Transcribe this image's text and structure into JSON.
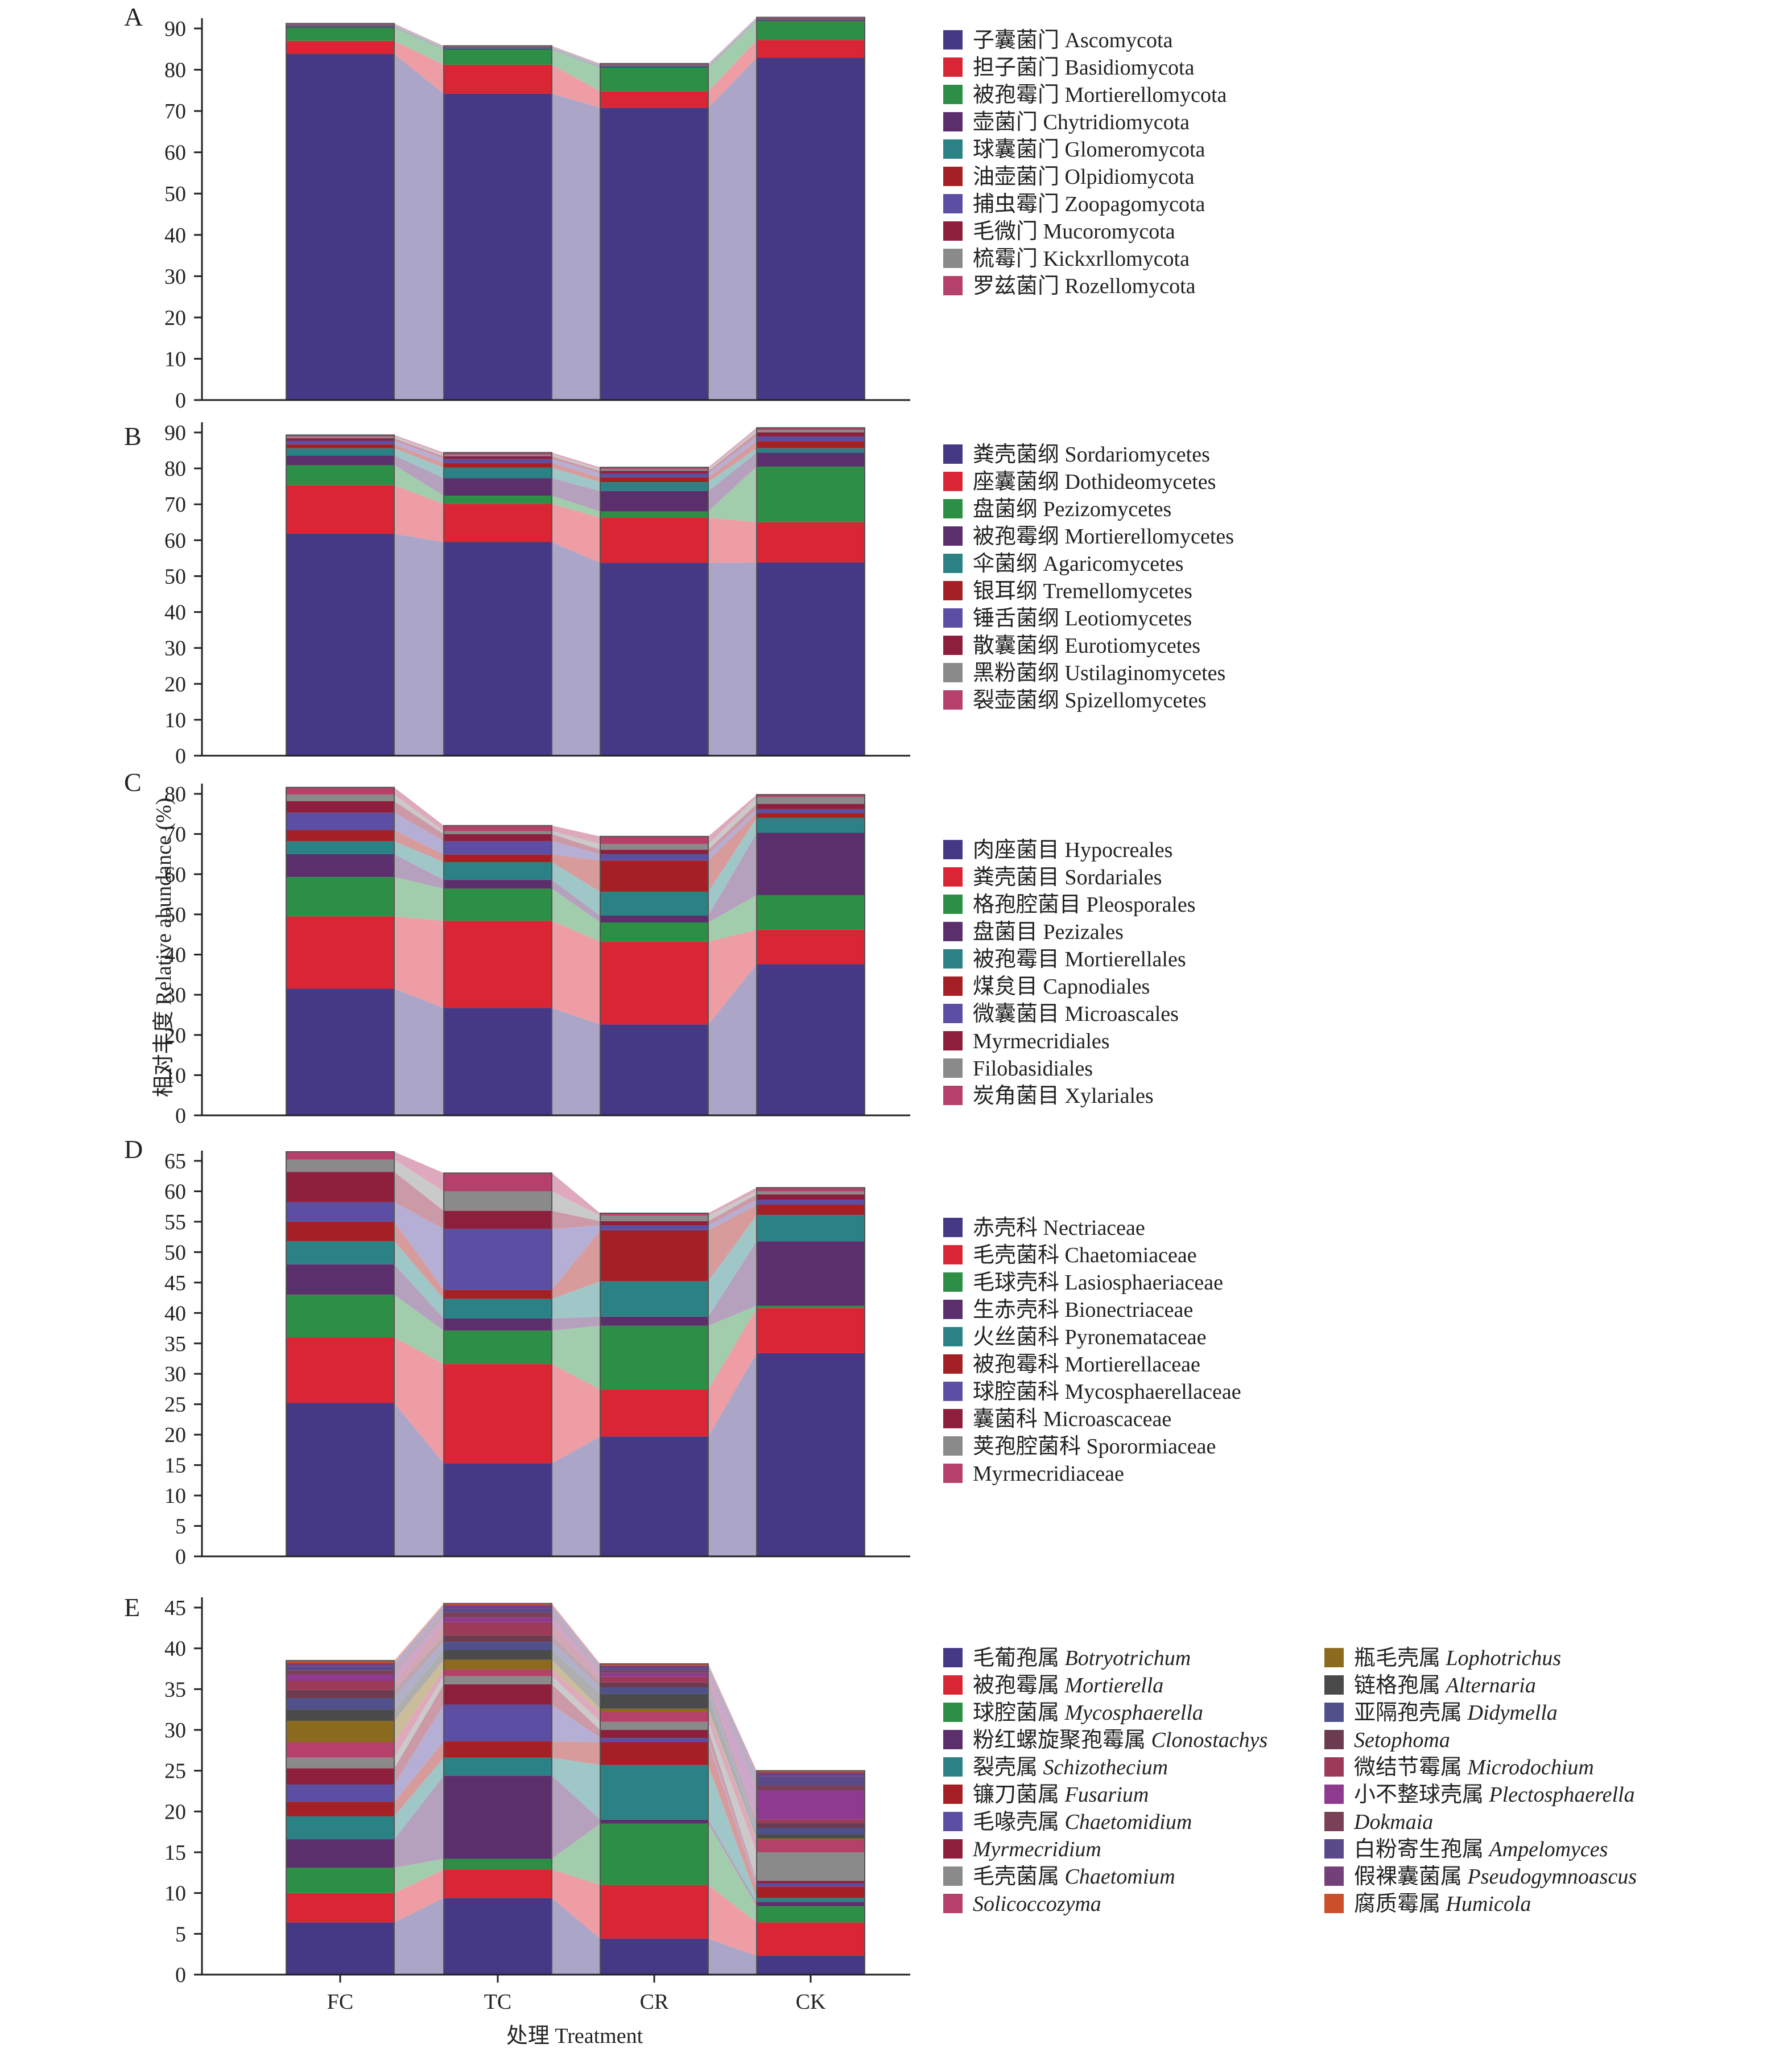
{
  "chart_data": {
    "type": "bar",
    "categories": [
      "FC",
      "TC",
      "CR",
      "CK"
    ],
    "xlabel": "处理 Treatment",
    "ylabel": "相对丰度 Relative abundance (%)",
    "panels": [
      {
        "letter": "A",
        "ylim": [
          0,
          90
        ],
        "yticks": [
          0,
          10,
          20,
          30,
          40,
          50,
          60,
          70,
          80,
          90
        ],
        "series": [
          {
            "name": "子囊菌门 Ascomycota",
            "color": "#453885",
            "values": [
              83.8,
              74.2,
              70.8,
              82.9
            ]
          },
          {
            "name": "担子菌门 Basidiomycota",
            "color": "#d92534",
            "values": [
              3.2,
              7.0,
              4.0,
              4.3
            ]
          },
          {
            "name": "被孢霉门 Mortierellomycota",
            "color": "#2d8f46",
            "values": [
              3.2,
              3.7,
              5.7,
              4.6
            ]
          },
          {
            "name": "壶菌门 Chytridiomycota",
            "color": "#5b2e6c",
            "values": [
              0.3,
              0.2,
              0.3,
              0.2
            ]
          },
          {
            "name": "球囊菌门 Glomeromycota",
            "color": "#2a8285",
            "values": [
              0.2,
              0.2,
              0.2,
              0.2
            ]
          },
          {
            "name": "油壶菌门 Olpidiomycota",
            "color": "#a52024",
            "values": [
              0.1,
              0.1,
              0.1,
              0.1
            ]
          },
          {
            "name": "捕虫霉门 Zoopagomycota",
            "color": "#5c4ea2",
            "values": [
              0.1,
              0.1,
              0.1,
              0.1
            ]
          },
          {
            "name": "毛微门 Mucoromycota",
            "color": "#8d1f3c",
            "values": [
              0.1,
              0.1,
              0.1,
              0.1
            ]
          },
          {
            "name": "梳霉门 Kickxrllomycota",
            "color": "#8a8a8a",
            "values": [
              0.1,
              0.1,
              0.1,
              0.1
            ]
          },
          {
            "name": "罗兹菌门 Rozellomycota",
            "color": "#b5406a",
            "values": [
              0.1,
              0.1,
              0.1,
              0.1
            ]
          }
        ]
      },
      {
        "letter": "B",
        "ylim": [
          0,
          90
        ],
        "yticks": [
          0,
          10,
          20,
          30,
          40,
          50,
          60,
          70,
          80,
          90
        ],
        "series": [
          {
            "name": "粪壳菌纲 Sordariomycetes",
            "color": "#453885",
            "values": [
              61.8,
              59.5,
              53.7,
              53.8
            ]
          },
          {
            "name": "座囊菌纲 Dothideomycetes",
            "color": "#d92534",
            "values": [
              13.5,
              10.6,
              12.6,
              11.2
            ]
          },
          {
            "name": "盘菌纲 Pezizomycetes",
            "color": "#2d8f46",
            "values": [
              5.6,
              2.3,
              1.7,
              15.5
            ]
          },
          {
            "name": "被孢霉纲 Mortierellomycetes",
            "color": "#5b2e6c",
            "values": [
              2.7,
              4.9,
              5.7,
              3.9
            ]
          },
          {
            "name": "伞菌纲 Agaricomycetes",
            "color": "#2a8285",
            "values": [
              2.0,
              2.9,
              2.5,
              1.2
            ]
          },
          {
            "name": "银耳纲 Tremellomycetes",
            "color": "#a52024",
            "values": [
              1.1,
              1.3,
              1.3,
              2.0
            ]
          },
          {
            "name": "锤舌菌纲 Leotiomycetes",
            "color": "#5c4ea2",
            "values": [
              1.0,
              1.1,
              1.1,
              1.3
            ]
          },
          {
            "name": "散囊菌纲 Eurotiomycetes",
            "color": "#8d1f3c",
            "values": [
              0.7,
              0.8,
              0.7,
              1.1
            ]
          },
          {
            "name": "黑粉菌纲 Ustilaginomycetes",
            "color": "#8a8a8a",
            "values": [
              0.5,
              0.5,
              0.5,
              0.7
            ]
          },
          {
            "name": "裂壶菌纲 Spizellomycetes",
            "color": "#b5406a",
            "values": [
              0.4,
              0.5,
              0.5,
              0.6
            ]
          }
        ]
      },
      {
        "letter": "C",
        "ylim": [
          0,
          80
        ],
        "yticks": [
          0,
          10,
          20,
          30,
          40,
          50,
          60,
          70,
          80
        ],
        "series": [
          {
            "name": "肉座菌目 Hypocreales",
            "color": "#453885",
            "values": [
              31.5,
              26.7,
              22.6,
              37.6
            ]
          },
          {
            "name": "粪壳菌目 Sordariales",
            "color": "#d92534",
            "values": [
              18.0,
              21.7,
              20.6,
              8.6
            ]
          },
          {
            "name": "格孢腔菌目 Pleosporales",
            "color": "#2d8f46",
            "values": [
              9.8,
              8.0,
              4.8,
              8.6
            ]
          },
          {
            "name": "盘菌目 Pezizales",
            "color": "#5b2e6c",
            "values": [
              5.7,
              2.2,
              1.7,
              15.5
            ]
          },
          {
            "name": "被孢霉目 Mortierellales",
            "color": "#2a8285",
            "values": [
              3.2,
              4.4,
              5.9,
              3.7
            ]
          },
          {
            "name": "煤炱目 Capnodiales",
            "color": "#a52024",
            "values": [
              2.8,
              1.9,
              7.8,
              1.2
            ]
          },
          {
            "name": "微囊菌目 Microascales",
            "color": "#5c4ea2",
            "values": [
              4.3,
              3.3,
              1.6,
              1.0
            ]
          },
          {
            "name": "Myrmecridiales",
            "color": "#8d1f3c",
            "values": [
              2.9,
              1.8,
              1.1,
              1.3
            ]
          },
          {
            "name": "Filobasidiales",
            "color": "#8a8a8a",
            "values": [
              1.6,
              0.7,
              1.4,
              1.7
            ]
          },
          {
            "name": "炭角菌目 Xylariales",
            "color": "#b5406a",
            "values": [
              1.8,
              1.4,
              1.9,
              0.6
            ]
          }
        ]
      },
      {
        "letter": "D",
        "ylim": [
          0,
          65
        ],
        "yticks": [
          0,
          5,
          10,
          15,
          20,
          25,
          30,
          35,
          40,
          45,
          50,
          55,
          60,
          65
        ],
        "series": [
          {
            "name": "赤壳科 Nectriaceae",
            "color": "#453885",
            "values": [
              25.2,
              15.3,
              19.7,
              33.4
            ]
          },
          {
            "name": "毛壳菌科 Chaetomiaceae",
            "color": "#d92534",
            "values": [
              10.8,
              16.3,
              7.7,
              7.4
            ]
          },
          {
            "name": "毛球壳科 Lasiosphaeriaceae",
            "color": "#2d8f46",
            "values": [
              7.0,
              5.5,
              10.5,
              0.4
            ]
          },
          {
            "name": "生赤壳科 Bionectriaceae",
            "color": "#5b2e6c",
            "values": [
              5.0,
              2.0,
              1.5,
              10.6
            ]
          },
          {
            "name": "火丝菌科 Pyronemataceae",
            "color": "#2a8285",
            "values": [
              3.8,
              3.2,
              5.8,
              4.3
            ]
          },
          {
            "name": "被孢霉科 Mortierellaceae",
            "color": "#a52024",
            "values": [
              3.2,
              1.5,
              8.4,
              1.7
            ]
          },
          {
            "name": "球腔菌科 Mycosphaerellaceae",
            "color": "#5c4ea2",
            "values": [
              3.2,
              10.0,
              0.8,
              0.8
            ]
          },
          {
            "name": "囊菌科 Microascaceae",
            "color": "#8d1f3c",
            "values": [
              5.0,
              3.0,
              0.7,
              0.9
            ]
          },
          {
            "name": "荚孢腔菌科 Sporormiaceae",
            "color": "#8a8a8a",
            "values": [
              2.0,
              3.2,
              0.9,
              0.5
            ]
          },
          {
            "name": "Myrmecridiaceae",
            "color": "#b5406a",
            "values": [
              1.3,
              3.0,
              0.4,
              0.6
            ]
          }
        ]
      },
      {
        "letter": "E",
        "ylim": [
          0,
          45
        ],
        "yticks": [
          0,
          5,
          10,
          15,
          20,
          25,
          30,
          35,
          40,
          45
        ],
        "legend_columns": 2,
        "series": [
          {
            "name_cn": "毛葡孢属",
            "name_latin": "Botryotrichum",
            "color": "#453885",
            "values": [
              6.4,
              9.4,
              4.4,
              2.3
            ]
          },
          {
            "name_cn": "被孢霉属",
            "name_latin": "Mortierella",
            "color": "#d92534",
            "values": [
              3.6,
              3.5,
              6.6,
              4.1
            ]
          },
          {
            "name_cn": "球腔菌属",
            "name_latin": "Mycosphaerella",
            "color": "#2d8f46",
            "values": [
              3.1,
              1.3,
              7.5,
              2.0
            ]
          },
          {
            "name_cn": "粉红螺旋聚孢霉属",
            "name_latin": "Clonostachys",
            "color": "#5b2e6c",
            "values": [
              3.5,
              10.2,
              0.5,
              0.5
            ]
          },
          {
            "name_cn": "裂壳属",
            "name_latin": "Schizothecium",
            "color": "#2a8285",
            "values": [
              2.8,
              2.2,
              6.7,
              0.5
            ]
          },
          {
            "name_cn": "镰刀菌属",
            "name_latin": "Fusarium",
            "color": "#a52024",
            "values": [
              1.8,
              2.0,
              2.8,
              1.4
            ]
          },
          {
            "name_cn": "毛喙壳属",
            "name_latin": "Chaetomidium",
            "color": "#5c4ea2",
            "values": [
              2.1,
              4.5,
              0.5,
              0.4
            ]
          },
          {
            "name_cn": "",
            "name_latin": "Myrmecridium",
            "color": "#8d1f3c",
            "values": [
              2.0,
              2.5,
              1.0,
              0.3
            ]
          },
          {
            "name_cn": "毛壳菌属",
            "name_latin": "Chaetomium",
            "color": "#8a8a8a",
            "values": [
              1.3,
              1.0,
              1.0,
              3.5
            ]
          },
          {
            "name_cn": "",
            "name_latin": "Solicoccozyma",
            "color": "#b5406a",
            "values": [
              1.9,
              0.8,
              1.2,
              1.5
            ]
          },
          {
            "name_cn": "瓶毛壳属",
            "name_latin": "Lophotrichus",
            "color": "#8c6a1e",
            "values": [
              2.6,
              1.2,
              0.4,
              0.2
            ]
          },
          {
            "name_cn": "链格孢属",
            "name_latin": "Alternaria",
            "color": "#4a4a4a",
            "values": [
              1.4,
              1.2,
              1.8,
              0.5
            ]
          },
          {
            "name_cn": "亚隔孢壳属",
            "name_latin": "Didymella",
            "color": "#50508a",
            "values": [
              1.4,
              1.0,
              0.8,
              0.8
            ]
          },
          {
            "name_cn": "",
            "name_latin": "Setophoma",
            "color": "#6b3b4f",
            "values": [
              1.0,
              0.8,
              0.6,
              0.6
            ]
          },
          {
            "name_cn": "微结节霉属",
            "name_latin": "Microdochium",
            "color": "#9c3a58",
            "values": [
              1.1,
              1.6,
              0.7,
              0.4
            ]
          },
          {
            "name_cn": "小不整球壳属",
            "name_latin": "Plectosphaerella",
            "color": "#8e3a8e",
            "values": [
              0.8,
              0.6,
              0.5,
              3.6
            ]
          },
          {
            "name_cn": "",
            "name_latin": "Dokmaia",
            "color": "#7a4055",
            "values": [
              0.5,
              0.6,
              0.3,
              0.6
            ]
          },
          {
            "name_cn": "白粉寄生孢属",
            "name_latin": "Ampelomyces",
            "color": "#5a4a8a",
            "values": [
              0.5,
              0.5,
              0.3,
              1.1
            ]
          },
          {
            "name_cn": "假裸囊菌属",
            "name_latin": "Pseudogymnoascus",
            "color": "#74407a",
            "values": [
              0.4,
              0.4,
              0.3,
              0.5
            ]
          },
          {
            "name_cn": "腐质霉属",
            "name_latin": "Humicola",
            "color": "#c9502a",
            "values": [
              0.3,
              0.2,
              0.2,
              0.2
            ]
          }
        ]
      }
    ]
  }
}
